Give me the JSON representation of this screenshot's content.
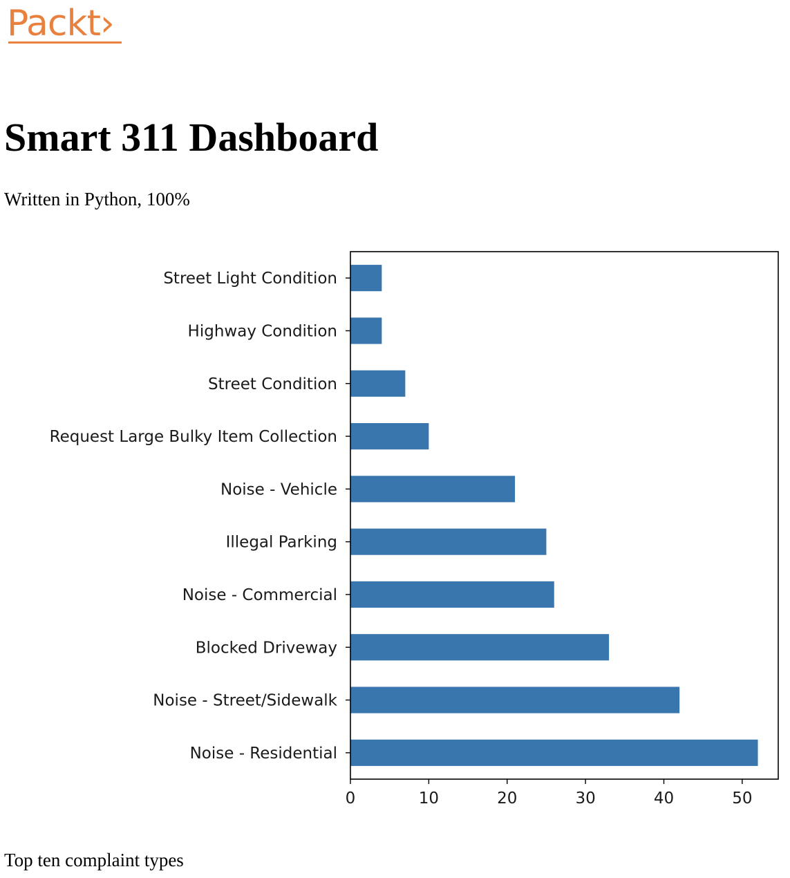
{
  "logo": {
    "text": "Packt›",
    "color": "#e8813e"
  },
  "page": {
    "title": "Smart 311 Dashboard",
    "subtitle": "Written in Python, 100%",
    "caption": "Top ten complaint types"
  },
  "chart_data": {
    "type": "bar",
    "orientation": "horizontal",
    "categories": [
      "Street Light Condition",
      "Highway Condition",
      "Street Condition",
      "Request Large Bulky Item Collection",
      "Noise - Vehicle",
      "Illegal Parking",
      "Noise - Commercial",
      "Blocked Driveway",
      "Noise - Street/Sidewalk",
      "Noise - Residential"
    ],
    "values": [
      4,
      4,
      7,
      10,
      21,
      25,
      26,
      33,
      42,
      52
    ],
    "xticks": [
      0,
      10,
      20,
      30,
      40,
      50
    ],
    "xlim": [
      0,
      54.6
    ],
    "bar_color": "#3a76ae",
    "title": "",
    "xlabel": "",
    "ylabel": "",
    "grid": false
  }
}
